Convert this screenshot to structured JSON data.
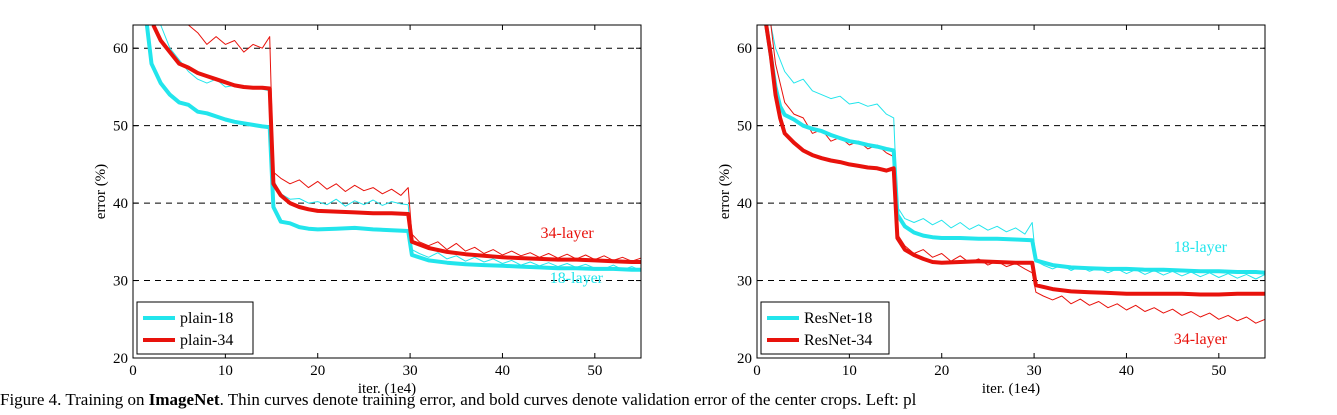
{
  "caption": {
    "prefix": "Figure 4. Training on ",
    "bold": "ImageNet",
    "suffix": ". Thin curves denote training error, and bold curves denote validation error of the center crops. Left: pl"
  },
  "colors": {
    "cyan": "#22e5ec",
    "red": "#e8120c"
  },
  "chart_data": [
    {
      "type": "line",
      "xlabel": "iter. (1e4)",
      "ylabel": "error (%)",
      "xlim": [
        0,
        55
      ],
      "ylim": [
        20,
        63
      ],
      "xticks": [
        0,
        10,
        20,
        30,
        40,
        50
      ],
      "yticks": [
        20,
        30,
        40,
        50,
        60
      ],
      "grid": "horizontal dashed at 30, 40, 50, 60",
      "legend": {
        "placement": "bottom-left",
        "entries": [
          "plain-18",
          "plain-34"
        ]
      },
      "annotations": [
        {
          "text": "34-layer",
          "color": "red",
          "anchor": [
            47,
            35.5
          ]
        },
        {
          "text": "18-layer",
          "color": "cyan",
          "anchor": [
            48,
            29.7
          ]
        }
      ],
      "series": [
        {
          "name": "plain-18",
          "role": "validation",
          "color": "cyan",
          "x": [
            1.5,
            2,
            3,
            4,
            5,
            6,
            7,
            8,
            9,
            10,
            11,
            12,
            13,
            14,
            14.8,
            15.2,
            16,
            17,
            18,
            19,
            20,
            22,
            24,
            26,
            28,
            29.8,
            30.2,
            32,
            34,
            36,
            38,
            40,
            42,
            44,
            46,
            48,
            50,
            52,
            54,
            55
          ],
          "y": [
            63,
            58,
            55.5,
            54,
            53,
            52.7,
            51.8,
            51.6,
            51.2,
            50.8,
            50.5,
            50.3,
            50.1,
            49.9,
            49.8,
            39.5,
            37.6,
            37.4,
            36.9,
            36.7,
            36.6,
            36.7,
            36.8,
            36.6,
            36.5,
            36.4,
            33.3,
            32.6,
            32.3,
            32.1,
            32.0,
            31.9,
            31.8,
            31.7,
            31.6,
            31.6,
            31.5,
            31.5,
            31.4,
            31.4
          ]
        },
        {
          "name": "plain-34",
          "role": "validation",
          "color": "red",
          "x": [
            2.2,
            3,
            4,
            5,
            6,
            7,
            8,
            9,
            10,
            11,
            12,
            13,
            14,
            14.8,
            15.2,
            16,
            17,
            18,
            19,
            20,
            22,
            24,
            26,
            28,
            29.8,
            30.2,
            32,
            34,
            36,
            38,
            40,
            42,
            44,
            46,
            48,
            50,
            52,
            54,
            55
          ],
          "y": [
            63,
            61,
            59.5,
            58,
            57.5,
            56.8,
            56.4,
            56,
            55.6,
            55.2,
            55,
            54.9,
            54.9,
            54.8,
            42.5,
            41,
            40,
            39.5,
            39.2,
            39.0,
            38.9,
            38.8,
            38.7,
            38.7,
            38.6,
            35.0,
            34.2,
            33.7,
            33.4,
            33.2,
            33.0,
            32.9,
            32.8,
            32.7,
            32.7,
            32.6,
            32.5,
            32.4,
            32.4
          ]
        },
        {
          "name": "",
          "role": "training",
          "color": "cyan",
          "x": [
            3,
            4,
            5,
            6,
            7,
            8,
            9,
            10,
            11,
            12,
            13,
            14,
            14.8,
            15.2,
            16,
            17,
            18,
            19,
            20,
            21,
            22,
            23,
            24,
            25,
            26,
            27,
            28,
            29,
            29.8,
            30.2,
            31,
            32,
            33,
            34,
            35,
            36,
            37,
            38,
            39,
            40,
            41,
            42,
            43,
            44,
            45,
            46,
            47,
            48,
            49,
            50,
            51,
            52,
            53,
            54,
            55
          ],
          "y": [
            63,
            60,
            58.5,
            57,
            56,
            55.5,
            56,
            55,
            55.2,
            54.8,
            55,
            54.7,
            54.5,
            43,
            41.2,
            40.5,
            40.6,
            40,
            40.2,
            39.8,
            40.5,
            39.6,
            40.3,
            39.8,
            40.4,
            39.7,
            40.2,
            39.9,
            39.8,
            34,
            33.5,
            33,
            33.6,
            32.8,
            33.2,
            32.5,
            33,
            32.4,
            32.8,
            32.2,
            32.6,
            32,
            32.4,
            31.9,
            32.3,
            31.8,
            32.2,
            31.7,
            32.1,
            31.6,
            31.5,
            32,
            31.4,
            31.8,
            31.3
          ]
        },
        {
          "name": "",
          "role": "training",
          "color": "red",
          "x": [
            6,
            7,
            8,
            9,
            10,
            11,
            12,
            13,
            14,
            14.8,
            15.2,
            16,
            17,
            18,
            19,
            20,
            21,
            22,
            23,
            24,
            25,
            26,
            27,
            28,
            29,
            29.8,
            30.2,
            31,
            32,
            33,
            34,
            35,
            36,
            37,
            38,
            39,
            40,
            41,
            42,
            43,
            44,
            45,
            46,
            47,
            48,
            49,
            50,
            51,
            52,
            53,
            54,
            55
          ],
          "y": [
            63,
            62,
            60.5,
            61.5,
            60.5,
            61,
            59.5,
            60.5,
            60,
            61.5,
            44,
            43.2,
            42.5,
            43,
            42,
            42.8,
            41.8,
            42.5,
            41.5,
            42.3,
            41.6,
            42,
            41.2,
            41.8,
            41,
            42,
            36,
            35,
            34.5,
            35,
            34,
            34.8,
            33.8,
            34.3,
            33.5,
            34,
            33.3,
            33.8,
            33.2,
            33.6,
            33,
            33.5,
            32.9,
            33.4,
            32.8,
            33.3,
            32.7,
            33.2,
            32.6,
            33,
            32.5,
            32.9
          ]
        }
      ]
    },
    {
      "type": "line",
      "xlabel": "iter. (1e4)",
      "ylabel": "error (%)",
      "xlim": [
        0,
        55
      ],
      "ylim": [
        20,
        63
      ],
      "xticks": [
        0,
        10,
        20,
        30,
        40,
        50
      ],
      "yticks": [
        20,
        30,
        40,
        50,
        60
      ],
      "grid": "horizontal dashed at 30, 40, 50, 60",
      "legend": {
        "placement": "bottom-left",
        "entries": [
          "ResNet-18",
          "ResNet-34"
        ]
      },
      "annotations": [
        {
          "text": "18-layer",
          "color": "cyan",
          "anchor": [
            48,
            33.7
          ]
        },
        {
          "text": "34-layer",
          "color": "red",
          "anchor": [
            48,
            21.8
          ]
        }
      ],
      "series": [
        {
          "name": "ResNet-18",
          "role": "validation",
          "color": "cyan",
          "x": [
            1,
            1.5,
            2,
            2.5,
            3,
            4,
            5,
            6,
            7,
            8,
            9,
            10,
            11,
            12,
            13,
            14,
            14.8,
            15.2,
            16,
            17,
            18,
            19,
            20,
            22,
            24,
            26,
            28,
            29.8,
            30.2,
            32,
            34,
            36,
            38,
            40,
            42,
            44,
            46,
            48,
            50,
            52,
            54,
            55
          ],
          "y": [
            63,
            59,
            55,
            52.5,
            51.4,
            50.8,
            50,
            49.6,
            49.3,
            48.8,
            48.4,
            48,
            47.8,
            47.5,
            47.3,
            47,
            46.8,
            38.5,
            37,
            36.2,
            35.8,
            35.6,
            35.5,
            35.5,
            35.4,
            35.4,
            35.3,
            35.2,
            32.6,
            32,
            31.7,
            31.6,
            31.5,
            31.5,
            31.4,
            31.4,
            31.3,
            31.2,
            31.2,
            31.1,
            31.1,
            31.0
          ]
        },
        {
          "name": "ResNet-34",
          "role": "validation",
          "color": "red",
          "x": [
            1,
            1.5,
            2,
            2.5,
            3,
            4,
            5,
            6,
            7,
            8,
            9,
            10,
            11,
            12,
            13,
            14,
            14.8,
            15.2,
            16,
            17,
            18,
            19,
            20,
            22,
            24,
            26,
            28,
            29.8,
            30.2,
            32,
            34,
            36,
            38,
            40,
            42,
            44,
            46,
            48,
            50,
            52,
            54,
            55
          ],
          "y": [
            63,
            59,
            54,
            51,
            49,
            47.8,
            46.8,
            46.2,
            45.8,
            45.5,
            45.3,
            45,
            44.8,
            44.6,
            44.5,
            44.2,
            44.5,
            35.5,
            34,
            33.3,
            32.8,
            32.4,
            32.3,
            32.4,
            32.5,
            32.4,
            32.3,
            32.3,
            29.4,
            28.9,
            28.6,
            28.5,
            28.4,
            28.3,
            28.3,
            28.3,
            28.3,
            28.2,
            28.2,
            28.3,
            28.3,
            28.3
          ]
        },
        {
          "name": "",
          "role": "training",
          "color": "cyan",
          "x": [
            1.5,
            2,
            3,
            4,
            5,
            6,
            7,
            8,
            9,
            10,
            11,
            12,
            13,
            14,
            14.8,
            15.2,
            16,
            17,
            18,
            19,
            20,
            21,
            22,
            23,
            24,
            25,
            26,
            27,
            28,
            29,
            29.8,
            30.2,
            31,
            32,
            33,
            34,
            35,
            36,
            37,
            38,
            39,
            40,
            41,
            42,
            43,
            44,
            45,
            46,
            47,
            48,
            49,
            50,
            51,
            52,
            53,
            54,
            55
          ],
          "y": [
            63,
            60,
            57,
            55.5,
            56,
            54.5,
            54,
            53.5,
            53.8,
            52.8,
            53,
            52.5,
            52.8,
            51.5,
            51,
            39.5,
            38,
            37.5,
            38,
            37.2,
            37.8,
            36.8,
            37.5,
            36.6,
            37.2,
            36.5,
            37,
            36.3,
            36.8,
            36,
            37.5,
            32.5,
            32,
            31.5,
            32,
            31.3,
            31.8,
            31.2,
            31.6,
            31,
            31.5,
            30.9,
            31.4,
            30.8,
            31.3,
            30.7,
            31.2,
            30.6,
            31.1,
            30.5,
            31,
            30.4,
            30.9,
            30.3,
            30.8,
            30.2,
            30.8
          ]
        },
        {
          "name": "",
          "role": "training",
          "color": "red",
          "x": [
            1.5,
            2,
            3,
            4,
            5,
            6,
            7,
            8,
            9,
            10,
            11,
            12,
            13,
            14,
            14.8,
            15.2,
            16,
            17,
            18,
            19,
            20,
            21,
            22,
            23,
            24,
            25,
            26,
            27,
            28,
            29,
            29.8,
            30.2,
            31,
            32,
            33,
            34,
            35,
            36,
            37,
            38,
            39,
            40,
            41,
            42,
            43,
            44,
            45,
            46,
            47,
            48,
            49,
            50,
            51,
            52,
            53,
            54,
            55
          ],
          "y": [
            63,
            58,
            53,
            51.5,
            51,
            49,
            49.5,
            48,
            48.5,
            47.5,
            48,
            47,
            47.5,
            46.5,
            46,
            36,
            34.5,
            33.5,
            34,
            33,
            33.5,
            32.5,
            33.2,
            32.3,
            32.8,
            32,
            32.5,
            31.8,
            32.2,
            31.5,
            31,
            28.5,
            28,
            27.5,
            28,
            27,
            27.6,
            26.8,
            27.3,
            26.5,
            27,
            26.2,
            26.8,
            26,
            26.5,
            25.8,
            26.3,
            25.5,
            26,
            25.3,
            25.8,
            25,
            25.5,
            24.8,
            25.3,
            24.5,
            25
          ]
        }
      ]
    }
  ]
}
